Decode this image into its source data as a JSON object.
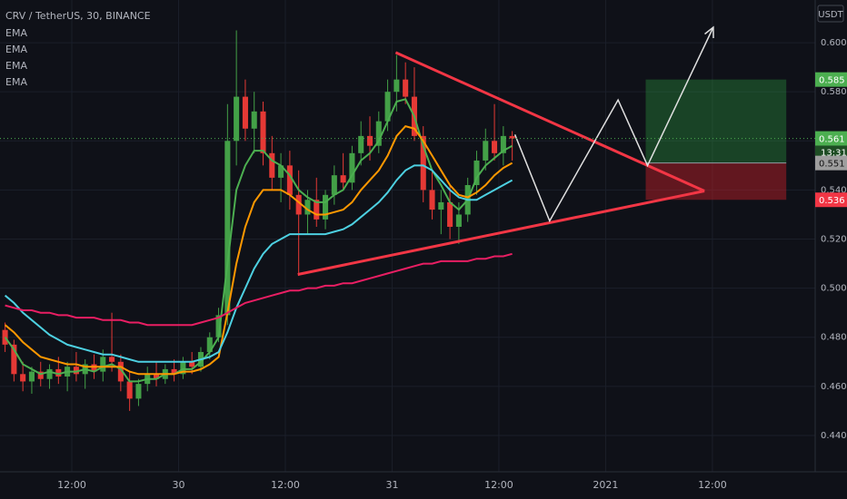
{
  "chart_data": {
    "type": "candlestick",
    "title": "CRV / TetherUS, 30, BINANCE",
    "currency": "USDT",
    "up_color": "#43a047",
    "down_color": "#e53935",
    "grid": true,
    "xlim": [
      3.93,
      95.55
    ],
    "ylim": [
      0.4252,
      0.6174
    ],
    "xticks": [
      {
        "value": 12,
        "label": "12:00"
      },
      {
        "value": 24,
        "label": "30"
      },
      {
        "value": 36,
        "label": "12:00"
      },
      {
        "value": 48,
        "label": "31"
      },
      {
        "value": 60,
        "label": "12:00"
      },
      {
        "value": 72,
        "label": "2021"
      },
      {
        "value": 84,
        "label": "12:00"
      }
    ],
    "yticks": [
      {
        "value": 0.44,
        "label": "0.440"
      },
      {
        "value": 0.46,
        "label": "0.460"
      },
      {
        "value": 0.48,
        "label": "0.480"
      },
      {
        "value": 0.5,
        "label": "0.500"
      },
      {
        "value": 0.52,
        "label": "0.520"
      },
      {
        "value": 0.54,
        "label": "0.540"
      },
      {
        "value": 0.56,
        "label": "0.560"
      },
      {
        "value": 0.58,
        "label": "0.580"
      },
      {
        "value": 0.6,
        "label": "0.600"
      }
    ],
    "x": [
      4.5,
      5.5,
      6.5,
      7.5,
      8.5,
      9.5,
      10.5,
      11.5,
      12.5,
      13.5,
      14.5,
      15.5,
      16.5,
      17.5,
      18.5,
      19.5,
      20.5,
      21.5,
      22.5,
      23.5,
      24.5,
      25.5,
      26.5,
      27.5,
      28.5,
      29.5,
      30.5,
      31.5,
      32.5,
      33.5,
      34.5,
      35.5,
      36.5,
      37.5,
      38.5,
      39.5,
      40.5,
      41.5,
      42.5,
      43.5,
      44.5,
      45.5,
      46.5,
      47.5,
      48.5,
      49.5,
      50.5,
      51.5,
      52.5,
      53.5,
      54.5,
      55.5,
      56.5,
      57.5,
      58.5,
      59.5,
      60.5,
      61.5
    ],
    "ohlc": [
      [
        0.483,
        0.486,
        0.474,
        0.477
      ],
      [
        0.477,
        0.479,
        0.462,
        0.465
      ],
      [
        0.465,
        0.47,
        0.458,
        0.462
      ],
      [
        0.462,
        0.468,
        0.457,
        0.466
      ],
      [
        0.466,
        0.47,
        0.46,
        0.463
      ],
      [
        0.463,
        0.469,
        0.459,
        0.467
      ],
      [
        0.467,
        0.472,
        0.461,
        0.464
      ],
      [
        0.464,
        0.47,
        0.458,
        0.468
      ],
      [
        0.468,
        0.474,
        0.462,
        0.465
      ],
      [
        0.465,
        0.471,
        0.459,
        0.469
      ],
      [
        0.469,
        0.473,
        0.463,
        0.466
      ],
      [
        0.466,
        0.475,
        0.462,
        0.472
      ],
      [
        0.472,
        0.49,
        0.466,
        0.47
      ],
      [
        0.47,
        0.473,
        0.458,
        0.462
      ],
      [
        0.462,
        0.466,
        0.45,
        0.455
      ],
      [
        0.455,
        0.463,
        0.452,
        0.461
      ],
      [
        0.461,
        0.468,
        0.458,
        0.465
      ],
      [
        0.465,
        0.47,
        0.46,
        0.463
      ],
      [
        0.463,
        0.469,
        0.461,
        0.467
      ],
      [
        0.467,
        0.471,
        0.462,
        0.465
      ],
      [
        0.465,
        0.472,
        0.463,
        0.47
      ],
      [
        0.47,
        0.474,
        0.465,
        0.468
      ],
      [
        0.468,
        0.476,
        0.466,
        0.474
      ],
      [
        0.474,
        0.482,
        0.471,
        0.48
      ],
      [
        0.48,
        0.492,
        0.478,
        0.489
      ],
      [
        0.489,
        0.575,
        0.485,
        0.56
      ],
      [
        0.56,
        0.605,
        0.55,
        0.578
      ],
      [
        0.578,
        0.585,
        0.56,
        0.565
      ],
      [
        0.565,
        0.58,
        0.555,
        0.572
      ],
      [
        0.572,
        0.576,
        0.55,
        0.555
      ],
      [
        0.555,
        0.562,
        0.54,
        0.545
      ],
      [
        0.545,
        0.555,
        0.535,
        0.55
      ],
      [
        0.55,
        0.556,
        0.532,
        0.538
      ],
      [
        0.538,
        0.548,
        0.505,
        0.53
      ],
      [
        0.53,
        0.54,
        0.522,
        0.536
      ],
      [
        0.536,
        0.545,
        0.525,
        0.528
      ],
      [
        0.528,
        0.54,
        0.524,
        0.538
      ],
      [
        0.538,
        0.55,
        0.534,
        0.546
      ],
      [
        0.546,
        0.555,
        0.54,
        0.543
      ],
      [
        0.543,
        0.558,
        0.54,
        0.555
      ],
      [
        0.555,
        0.568,
        0.55,
        0.562
      ],
      [
        0.562,
        0.57,
        0.552,
        0.558
      ],
      [
        0.558,
        0.572,
        0.555,
        0.568
      ],
      [
        0.568,
        0.585,
        0.564,
        0.58
      ],
      [
        0.58,
        0.595,
        0.572,
        0.585
      ],
      [
        0.585,
        0.592,
        0.575,
        0.578
      ],
      [
        0.578,
        0.59,
        0.56,
        0.562
      ],
      [
        0.562,
        0.566,
        0.535,
        0.54
      ],
      [
        0.54,
        0.548,
        0.528,
        0.532
      ],
      [
        0.532,
        0.54,
        0.522,
        0.535
      ],
      [
        0.535,
        0.542,
        0.52,
        0.525
      ],
      [
        0.525,
        0.535,
        0.518,
        0.53
      ],
      [
        0.53,
        0.545,
        0.527,
        0.542
      ],
      [
        0.542,
        0.556,
        0.538,
        0.552
      ],
      [
        0.552,
        0.565,
        0.548,
        0.56
      ],
      [
        0.56,
        0.575,
        0.552,
        0.555
      ],
      [
        0.555,
        0.566,
        0.55,
        0.562
      ],
      [
        0.562,
        0.564,
        0.552,
        0.561
      ]
    ],
    "series": [
      {
        "name": "EMA",
        "color": "#4caf50",
        "values": [
          0.48,
          0.475,
          0.469,
          0.467,
          0.465,
          0.466,
          0.465,
          0.466,
          0.466,
          0.467,
          0.466,
          0.468,
          0.469,
          0.467,
          0.462,
          0.462,
          0.463,
          0.463,
          0.465,
          0.465,
          0.467,
          0.467,
          0.47,
          0.474,
          0.48,
          0.51,
          0.54,
          0.55,
          0.556,
          0.556,
          0.552,
          0.55,
          0.546,
          0.54,
          0.537,
          0.535,
          0.535,
          0.538,
          0.54,
          0.546,
          0.552,
          0.555,
          0.56,
          0.568,
          0.576,
          0.577,
          0.57,
          0.558,
          0.548,
          0.542,
          0.535,
          0.532,
          0.536,
          0.545,
          0.55,
          0.553,
          0.556,
          0.558
        ]
      },
      {
        "name": "EMA",
        "color": "#ff9800",
        "values": [
          0.485,
          0.482,
          0.478,
          0.475,
          0.472,
          0.471,
          0.47,
          0.469,
          0.469,
          0.468,
          0.468,
          0.468,
          0.468,
          0.468,
          0.466,
          0.465,
          0.465,
          0.465,
          0.465,
          0.465,
          0.466,
          0.466,
          0.467,
          0.469,
          0.472,
          0.49,
          0.51,
          0.525,
          0.535,
          0.54,
          0.54,
          0.54,
          0.538,
          0.535,
          0.532,
          0.53,
          0.53,
          0.531,
          0.532,
          0.535,
          0.54,
          0.544,
          0.548,
          0.554,
          0.562,
          0.566,
          0.565,
          0.56,
          0.554,
          0.548,
          0.542,
          0.538,
          0.537,
          0.539,
          0.542,
          0.546,
          0.549,
          0.551
        ]
      },
      {
        "name": "EMA",
        "color": "#4dd0e1",
        "values": [
          0.497,
          0.494,
          0.49,
          0.487,
          0.484,
          0.481,
          0.479,
          0.477,
          0.476,
          0.475,
          0.474,
          0.473,
          0.473,
          0.472,
          0.471,
          0.47,
          0.47,
          0.47,
          0.47,
          0.47,
          0.47,
          0.47,
          0.471,
          0.472,
          0.474,
          0.482,
          0.492,
          0.5,
          0.508,
          0.514,
          0.518,
          0.52,
          0.522,
          0.522,
          0.522,
          0.522,
          0.522,
          0.523,
          0.524,
          0.526,
          0.529,
          0.532,
          0.535,
          0.539,
          0.544,
          0.548,
          0.55,
          0.55,
          0.548,
          0.544,
          0.54,
          0.537,
          0.536,
          0.536,
          0.538,
          0.54,
          0.542,
          0.544
        ]
      },
      {
        "name": "EMA",
        "color": "#e91e63",
        "values": [
          0.493,
          0.492,
          0.491,
          0.491,
          0.49,
          0.49,
          0.489,
          0.489,
          0.488,
          0.488,
          0.488,
          0.487,
          0.487,
          0.487,
          0.486,
          0.486,
          0.485,
          0.485,
          0.485,
          0.485,
          0.485,
          0.485,
          0.486,
          0.487,
          0.488,
          0.49,
          0.492,
          0.494,
          0.495,
          0.496,
          0.497,
          0.498,
          0.499,
          0.499,
          0.5,
          0.5,
          0.501,
          0.501,
          0.502,
          0.502,
          0.503,
          0.504,
          0.505,
          0.506,
          0.507,
          0.508,
          0.509,
          0.51,
          0.51,
          0.511,
          0.511,
          0.511,
          0.511,
          0.512,
          0.512,
          0.513,
          0.513,
          0.514
        ]
      }
    ],
    "drawings": {
      "triangle": {
        "color": "#f23645",
        "points": [
          [
            48.4,
            0.596
          ],
          [
            83.1,
            0.5396
          ],
          [
            37.4,
            0.5056
          ]
        ]
      },
      "projection": {
        "color": "#e0e0e0",
        "points": [
          [
            61.8,
            0.5626
          ],
          [
            65.7,
            0.5274
          ],
          [
            73.4,
            0.5767
          ],
          [
            76.7,
            0.55
          ],
          [
            84.1,
            0.6063
          ]
        ]
      },
      "position": {
        "x": [
          76.5,
          92.3
        ],
        "target": 0.585,
        "entry": 0.551,
        "stop": 0.536
      }
    },
    "price_labels": [
      {
        "value": 0.585,
        "color": "#4caf50"
      },
      {
        "value": 0.561,
        "color": "#4caf50"
      },
      {
        "value": 0.551,
        "color": "#9e9e9e"
      },
      {
        "value": 0.536,
        "color": "#f23645"
      }
    ],
    "countdown": "13:31"
  }
}
